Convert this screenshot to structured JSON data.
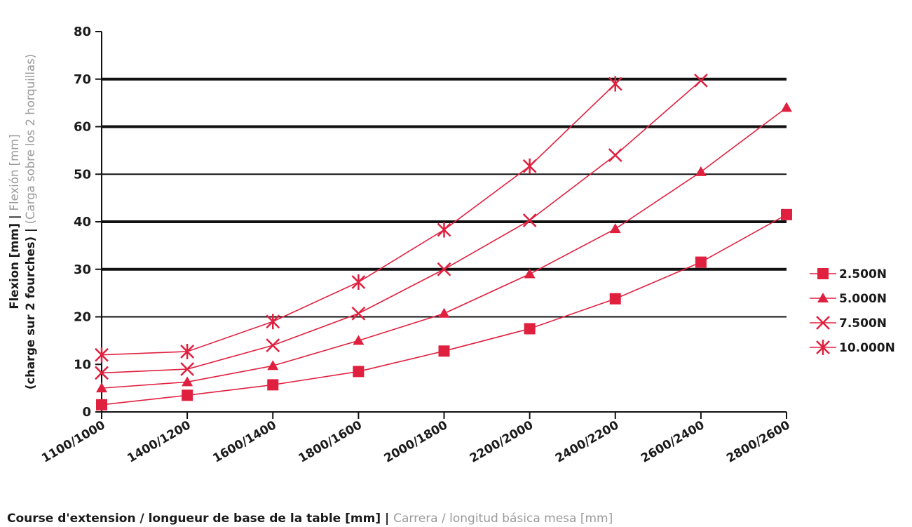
{
  "chart_data": {
    "type": "line",
    "categories": [
      "1100/1000",
      "1400/1200",
      "1600/1400",
      "1800/1600",
      "2000/1800",
      "2200/2000",
      "2400/2200",
      "2600/2400",
      "2800/2600"
    ],
    "series": [
      {
        "name": "2.500N",
        "marker": "square",
        "values": [
          1.5,
          3.5,
          5.7,
          8.5,
          12.8,
          17.5,
          23.8,
          31.5,
          41.5
        ]
      },
      {
        "name": "5.000N",
        "marker": "triangle",
        "values": [
          5,
          6.3,
          9.7,
          15,
          20.7,
          29,
          38.5,
          50.5,
          64
        ]
      },
      {
        "name": "7.500N",
        "marker": "x",
        "values": [
          8.2,
          9,
          14,
          20.7,
          30,
          40.3,
          54,
          69.7,
          null
        ]
      },
      {
        "name": "10.000N",
        "marker": "asterisk",
        "values": [
          12,
          12.7,
          19,
          27.3,
          38.3,
          51.7,
          69,
          null,
          null
        ]
      }
    ],
    "ylim": [
      0,
      80
    ],
    "yticks": [
      0,
      10,
      20,
      30,
      40,
      50,
      60,
      70,
      80
    ],
    "grid": "horizontal",
    "legend_position": "right",
    "ylabel": {
      "line1_dark": "Flexion [mm] | ",
      "line1_grey": "Flexión [mm]",
      "line2_dark": "(charge sur 2 fourches) | ",
      "line2_grey": "(Carga sobre los 2 horquillas)"
    },
    "xlabel": {
      "dark": "Course d'extension / longueur de base de la table [mm] | ",
      "grey": "Carrera / longitud básica mesa [mm]"
    },
    "colors": {
      "series": "#e0203f",
      "grid": "#111111",
      "text_dark": "#1a1a1a",
      "text_grey": "#9a9a9a"
    }
  }
}
